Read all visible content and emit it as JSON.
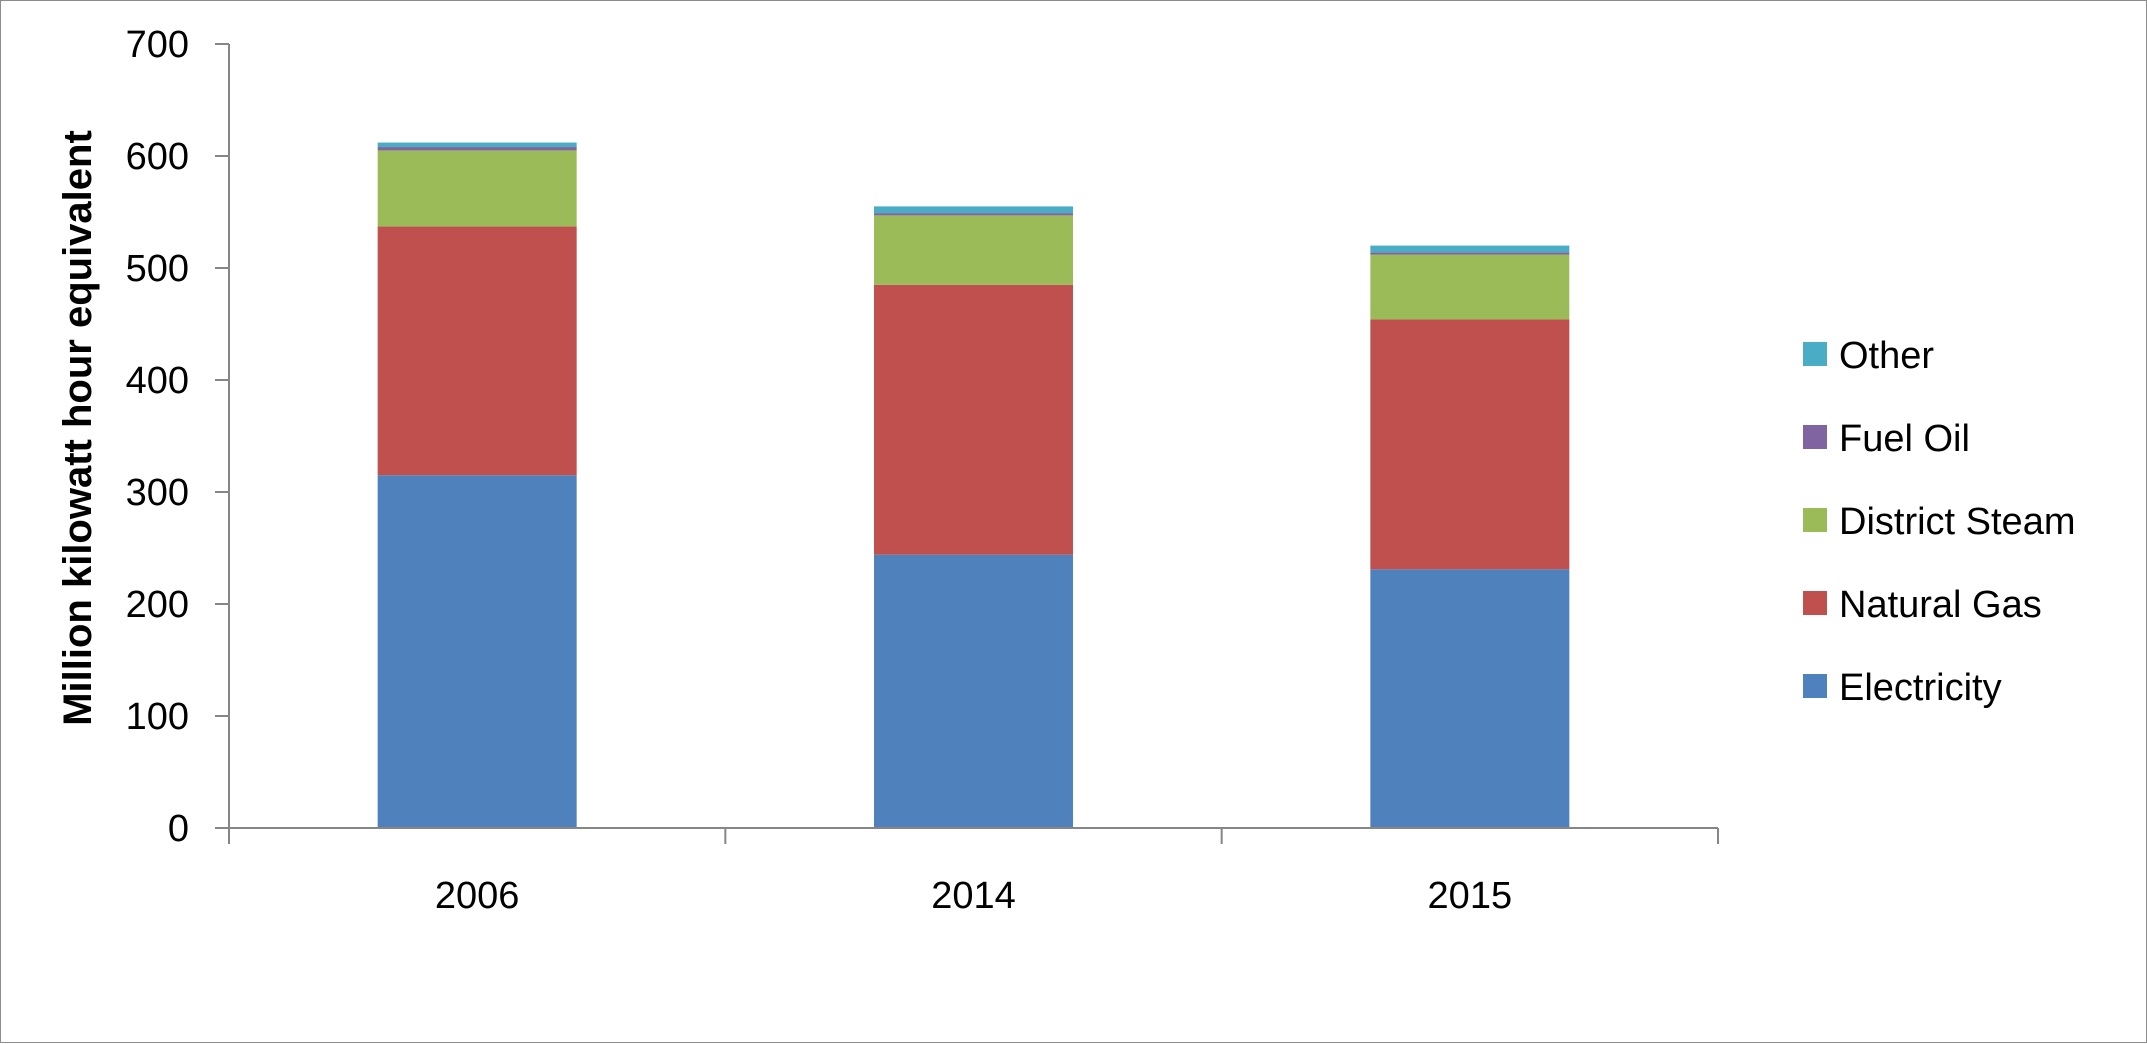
{
  "chart_data": {
    "type": "bar",
    "stacked": true,
    "ylabel": "Million kilowatt hour equivalent",
    "ylim": [
      0,
      700
    ],
    "yticks": [
      0,
      100,
      200,
      300,
      400,
      500,
      600,
      700
    ],
    "categories": [
      "2006",
      "2014",
      "2015"
    ],
    "legend_position": "right",
    "grid": false,
    "series": [
      {
        "name": "Electricity",
        "color": "#4f81bd",
        "values": [
          315,
          244,
          231
        ]
      },
      {
        "name": "Natural Gas",
        "color": "#c0504d",
        "values": [
          222,
          241,
          223
        ]
      },
      {
        "name": "District Steam",
        "color": "#9bbb59",
        "values": [
          68,
          62,
          58
        ]
      },
      {
        "name": "Fuel Oil",
        "color": "#8064a2",
        "values": [
          3,
          2,
          2
        ]
      },
      {
        "name": "Other",
        "color": "#4bacc6",
        "values": [
          4,
          6,
          6
        ]
      }
    ]
  }
}
